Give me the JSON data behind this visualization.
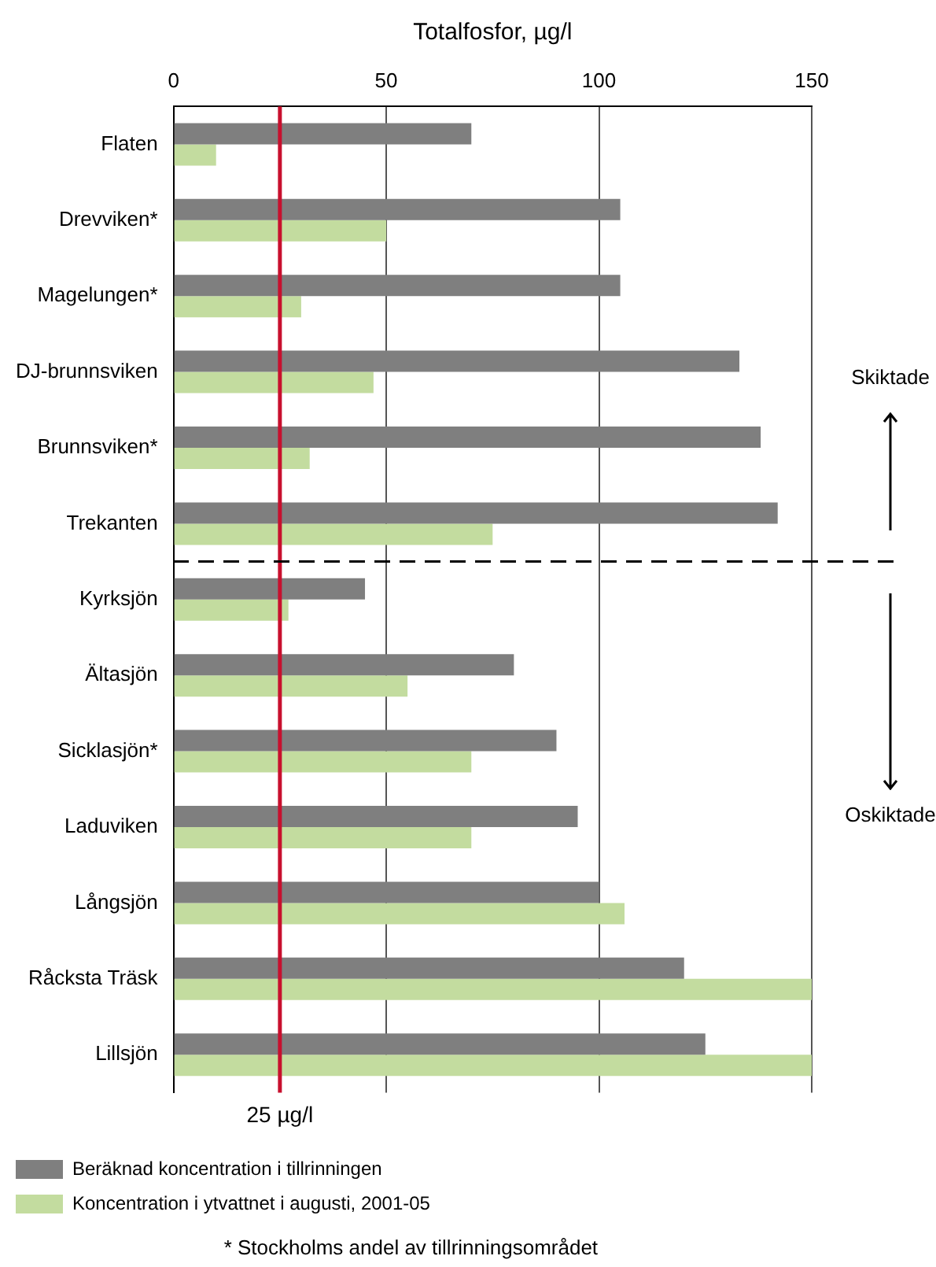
{
  "chart_data": {
    "type": "bar",
    "orientation": "horizontal",
    "xlabel": "Totalfosfor, µg/l",
    "categories": [
      "Flaten",
      "Drevviken*",
      "Magelungen*",
      "DJ-brunnsviken",
      "Brunnsviken*",
      "Trekanten",
      "Kyrksjön",
      "Ältasjön",
      "Sicklasjön*",
      "Laduviken",
      "Långsjön",
      "Råcksta Träsk",
      "Lillsjön"
    ],
    "series": [
      {
        "name": "Beräknad koncentration i tillrinningen",
        "color": "#7f7f7f",
        "values": [
          70,
          105,
          105,
          133,
          138,
          142,
          45,
          80,
          90,
          95,
          100,
          120,
          125
        ]
      },
      {
        "name": "Koncentration i ytvattnet i augusti, 2001-05",
        "color": "#c3dc9f",
        "values": [
          10,
          50,
          30,
          47,
          32,
          75,
          27,
          55,
          70,
          70,
          106,
          150,
          150
        ]
      }
    ],
    "xlim": [
      0,
      150
    ],
    "xticks": [
      0,
      50,
      100,
      150
    ],
    "grid": "x",
    "legend": "bottom",
    "ref_lines": [
      {
        "axis": "x",
        "value": 25,
        "label": "25 µg/l",
        "color": "#c8102e"
      }
    ],
    "annotations": [
      "Skiktade",
      "Oskiktade",
      "* Stockholms andel av tillrinningsområdet"
    ]
  }
}
